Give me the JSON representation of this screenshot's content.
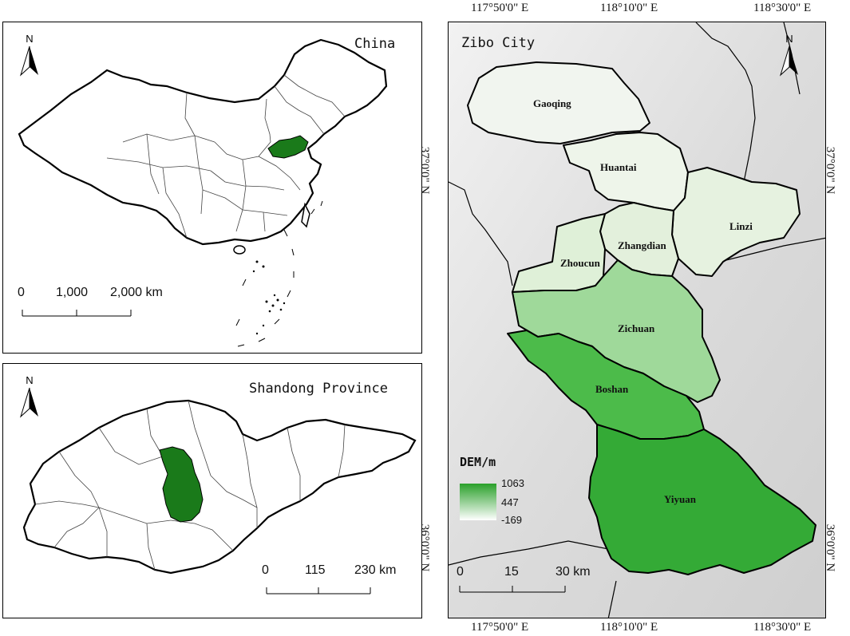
{
  "china_panel": {
    "title": "China",
    "north_label": "N",
    "scale_labels": [
      "0",
      "1,000",
      "2,000 km"
    ],
    "highlight_region": "Shandong"
  },
  "shandong_panel": {
    "title": "Shandong Province",
    "north_label": "N",
    "scale_labels": [
      "0",
      "115",
      "230 km"
    ],
    "highlight_region": "Zibo"
  },
  "zibo_panel": {
    "title": "Zibo City",
    "north_label": "N",
    "scale_labels": [
      "0",
      "15",
      "30 km"
    ],
    "top_longitudes": [
      "117°50'0\" E",
      "118°10'0\" E",
      "118°30'0\" E"
    ],
    "bottom_longitudes": [
      "117°50'0\" E",
      "118°10'0\" E",
      "118°30'0\" E"
    ],
    "left_latitudes": [
      "37°0'0\" N",
      "36°0'0\" N"
    ],
    "right_latitudes": [
      "37°0'0\" N",
      "36°0'0\" N"
    ],
    "districts": [
      "Gaoqing",
      "Huantai",
      "Linzi",
      "Zhangdian",
      "Zhoucun",
      "Zichuan",
      "Boshan",
      "Yiyuan"
    ],
    "legend": {
      "title": "DEM/m",
      "max": "1063",
      "mid": "447",
      "min": "-169"
    }
  },
  "colors": {
    "highlight": "#1a7a1a",
    "dem_high": "#2aa02a",
    "dem_low": "#ffffff",
    "background_relief": "#e0e0e0"
  }
}
